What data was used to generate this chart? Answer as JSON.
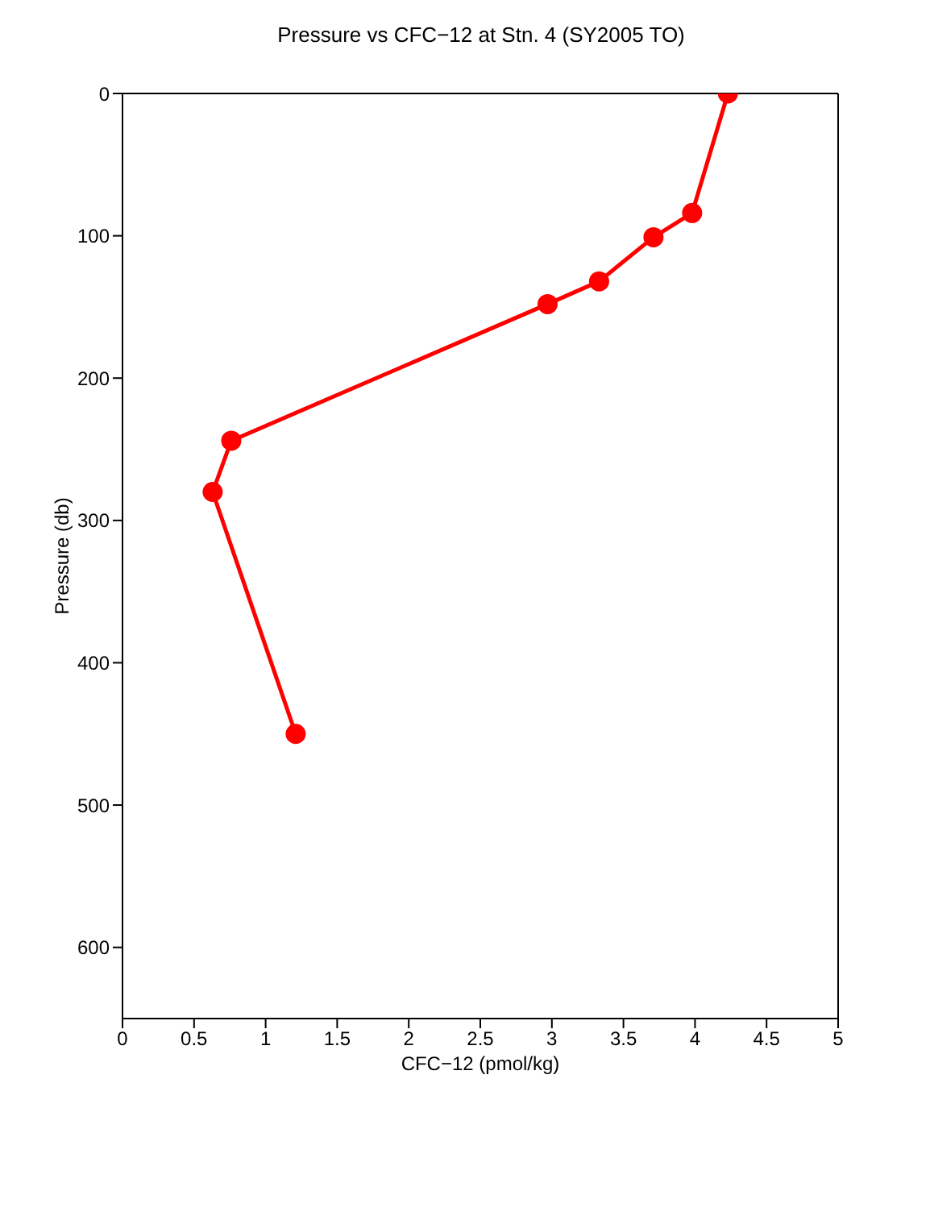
{
  "chart_data": {
    "type": "line",
    "title": "Pressure vs CFC−12 at Stn. 4 (SY2005 TO)",
    "xlabel": "CFC−12 (pmol/kg)",
    "ylabel": "Pressure (db)",
    "series": [
      {
        "color": "#ff0000",
        "x": [
          4.23,
          3.98,
          3.71,
          3.33,
          2.97,
          0.76,
          0.63,
          1.21
        ],
        "values": [
          0,
          84,
          101,
          132,
          148,
          244,
          280,
          450
        ]
      }
    ],
    "xlim": [
      0,
      5
    ],
    "xticks": [
      0,
      0.5,
      1,
      1.5,
      2,
      2.5,
      3,
      3.5,
      4,
      4.5,
      5
    ],
    "ylim": [
      650,
      0
    ],
    "yticks": [
      0,
      100,
      200,
      300,
      400,
      500,
      600
    ],
    "grid": false,
    "legend": false,
    "marker": "circle",
    "line_style": "solid"
  }
}
